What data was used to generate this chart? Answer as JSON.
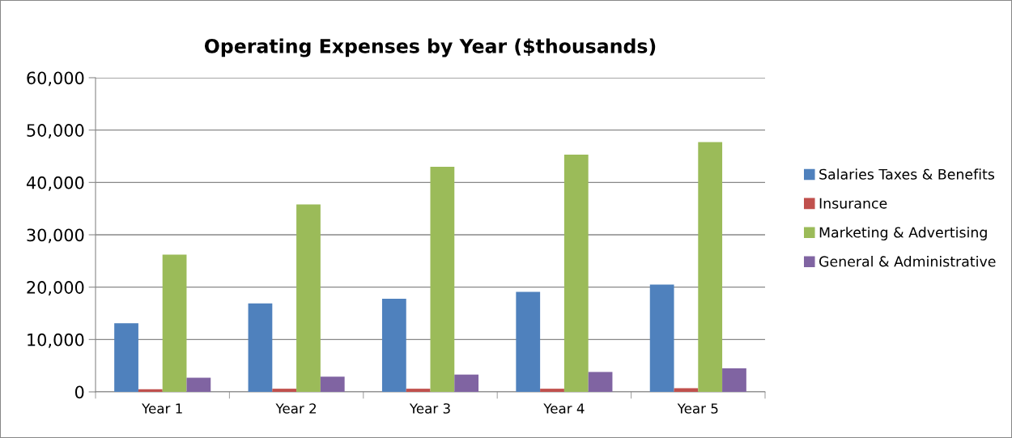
{
  "chart_data": {
    "type": "bar",
    "title": "Operating Expenses by Year ($thousands)",
    "categories": [
      "Year 1",
      "Year 2",
      "Year 3",
      "Year 4",
      "Year 5"
    ],
    "series": [
      {
        "name": "Salaries Taxes & Benefits",
        "color": "#4f81bd",
        "values": [
          13100,
          16900,
          17800,
          19100,
          20500
        ]
      },
      {
        "name": "Insurance",
        "color": "#c0504d",
        "values": [
          500,
          600,
          600,
          600,
          700
        ]
      },
      {
        "name": "Marketing & Advertising",
        "color": "#9bbb59",
        "values": [
          26200,
          35800,
          43000,
          45300,
          47700
        ]
      },
      {
        "name": "General & Administrative",
        "color": "#8064a2",
        "values": [
          2700,
          2900,
          3300,
          3800,
          4500
        ]
      }
    ],
    "ylim": [
      0,
      60000
    ],
    "yticks": [
      {
        "value": 0,
        "label": "0"
      },
      {
        "value": 10000,
        "label": "10,000"
      },
      {
        "value": 20000,
        "label": "20,000"
      },
      {
        "value": 30000,
        "label": "30,000"
      },
      {
        "value": 40000,
        "label": "40,000"
      },
      {
        "value": 50000,
        "label": "50,000"
      },
      {
        "value": 60000,
        "label": "60,000"
      }
    ],
    "grid": "y",
    "legend": "right"
  }
}
